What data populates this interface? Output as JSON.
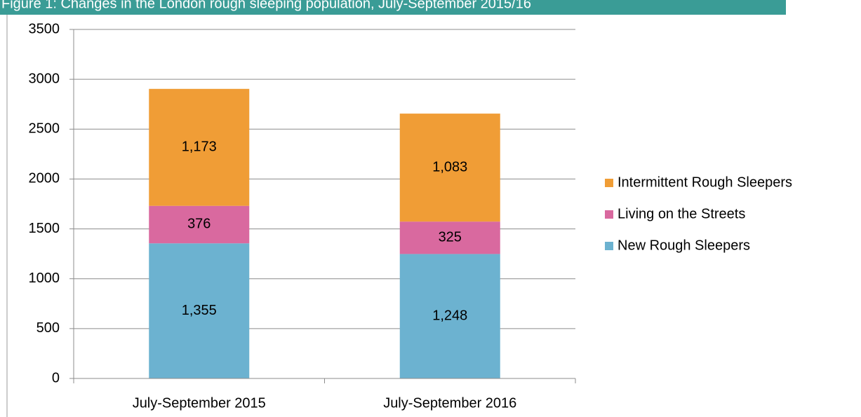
{
  "chart_data": {
    "type": "stacked_bar",
    "title": "Figure 1: Changes in the London rough sleeping population, July-September 2015/16",
    "categories": [
      "July-September 2015",
      "July-September  2016"
    ],
    "series": [
      {
        "name": "New Rough Sleepers",
        "color": "#6cb2d0",
        "values": [
          1355,
          1248
        ],
        "value_labels": [
          "1,355",
          "1,248"
        ]
      },
      {
        "name": "Living on the Streets",
        "color": "#d9699f",
        "values": [
          376,
          325
        ],
        "value_labels": [
          "376",
          "325"
        ]
      },
      {
        "name": "Intermittent Rough Sleepers",
        "color": "#f09d36",
        "values": [
          1173,
          1083
        ],
        "value_labels": [
          "1,173",
          "1,083"
        ]
      }
    ],
    "ylim": [
      0,
      3500
    ],
    "yticks": [
      0,
      500,
      1000,
      1500,
      2000,
      2500,
      3000,
      3500
    ],
    "grid": true,
    "legend": "right"
  }
}
